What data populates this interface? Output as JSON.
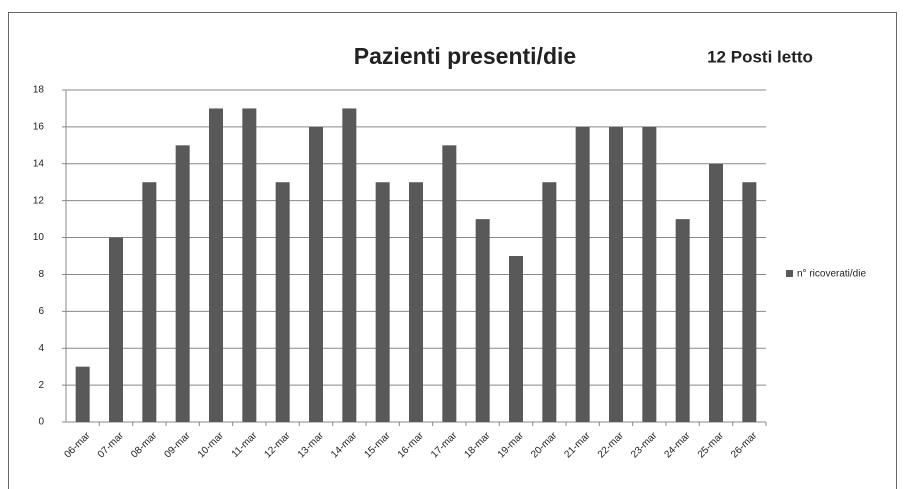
{
  "chart_data": {
    "type": "bar",
    "title": "Pazienti presenti/die",
    "annotation": "12 Posti letto",
    "categories": [
      "06-mar",
      "07-mar",
      "08-mar",
      "09-mar",
      "10-mar",
      "11-mar",
      "12-mar",
      "13-mar",
      "14-mar",
      "15-mar",
      "16-mar",
      "17-mar",
      "18-mar",
      "19-mar",
      "20-mar",
      "21-mar",
      "22-mar",
      "23-mar",
      "24-mar",
      "25-mar",
      "26-mar"
    ],
    "series": [
      {
        "name": "n° ricoverati/die",
        "color": "#595959",
        "values": [
          3,
          10,
          13,
          15,
          17,
          17,
          13,
          16,
          17,
          13,
          13,
          15,
          11,
          9,
          13,
          16,
          16,
          16,
          11,
          14,
          13
        ]
      }
    ],
    "ylim": [
      0,
      18
    ],
    "yticks": [
      0,
      2,
      4,
      6,
      8,
      10,
      12,
      14,
      16,
      18
    ],
    "grid": true,
    "legend": "right"
  }
}
